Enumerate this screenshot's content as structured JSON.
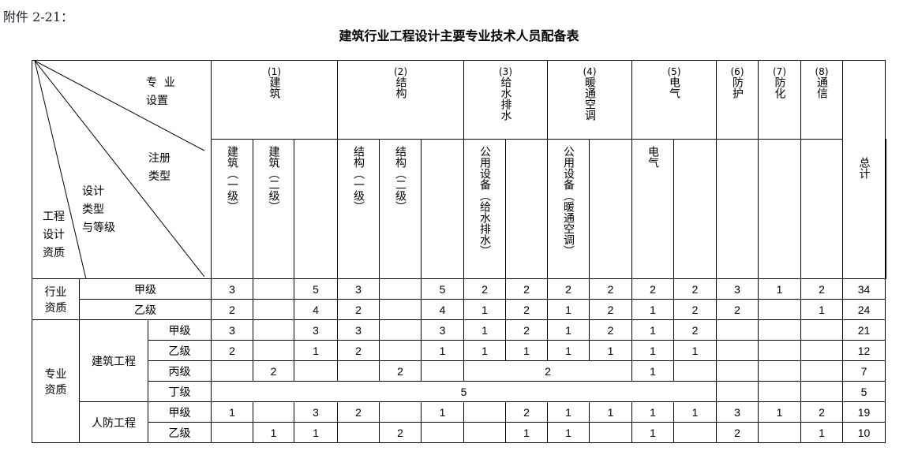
{
  "attachment_label": "附件 2-21：",
  "title": "建筑行业工程设计主要专业技术人员配备表",
  "corner": {
    "specialty_setting": "专  业\n设置",
    "registration_type": "注册\n类型",
    "design_type_grade": "设计\n类型\n与等级",
    "qualification": "工程\n设计\n资质"
  },
  "groups": [
    {
      "num": "(1)",
      "name": "建筑",
      "span": 3
    },
    {
      "num": "(2)",
      "name": "结构",
      "span": 3
    },
    {
      "num": "(3)",
      "name": "给水排水",
      "span": 2
    },
    {
      "num": "(4)",
      "name": "暖通空调",
      "span": 2
    },
    {
      "num": "(5)",
      "name": "电气",
      "span": 2
    },
    {
      "num": "(6)",
      "name": "防护",
      "span": 1
    },
    {
      "num": "(7)",
      "name": "防化",
      "span": 1
    },
    {
      "num": "(8)",
      "name": "通信",
      "span": 1
    }
  ],
  "total_label": "总计",
  "subheaders": [
    "建筑（一级）",
    "建筑（二级）",
    "",
    "结构（一级）",
    "结构（二级）",
    "",
    "公用设备（给水排水）",
    "",
    "公用设备（暖通空调）",
    "",
    "电气",
    "",
    "",
    "",
    "",
    ""
  ],
  "rows": [
    {
      "labels": [
        {
          "v": "行业\n资质",
          "rowspan": 2
        },
        {
          "v": "甲级",
          "colspan": 2
        }
      ],
      "cells": [
        "3",
        "",
        "5",
        "3",
        "",
        "5",
        "2",
        "2",
        "2",
        "2",
        "2",
        "2",
        "3",
        "1",
        "2",
        "34"
      ]
    },
    {
      "labels": [
        {
          "v": "乙级",
          "colspan": 2
        }
      ],
      "cells": [
        "2",
        "",
        "4",
        "2",
        "",
        "4",
        "1",
        "2",
        "1",
        "2",
        "1",
        "2",
        "2",
        "",
        "1",
        "24"
      ]
    },
    {
      "labels": [
        {
          "v": "专业\n资质",
          "rowspan": 6
        },
        {
          "v": "建筑工程",
          "rowspan": 4
        },
        {
          "v": "甲级"
        }
      ],
      "cells": [
        "3",
        "",
        "3",
        "3",
        "",
        "3",
        "1",
        "2",
        "1",
        "2",
        "1",
        "2",
        "",
        "",
        "",
        "21"
      ]
    },
    {
      "labels": [
        {
          "v": "乙级"
        }
      ],
      "cells": [
        "2",
        "",
        "1",
        "2",
        "",
        "1",
        "1",
        "1",
        "1",
        "1",
        "1",
        "1",
        "",
        "",
        "",
        "12"
      ]
    },
    {
      "labels": [
        {
          "v": "丙级"
        }
      ],
      "cells": [
        "",
        "2",
        "",
        "",
        "2",
        "",
        {
          "v": "2",
          "colspan": 4
        },
        "1",
        "",
        "",
        "",
        "",
        "7"
      ]
    },
    {
      "labels": [
        {
          "v": "丁级"
        }
      ],
      "cells": [
        {
          "v": "5",
          "colspan": 12
        },
        "",
        "",
        "",
        "5"
      ]
    },
    {
      "labels": [
        {
          "v": "人防工程",
          "rowspan": 2
        },
        {
          "v": "甲级"
        }
      ],
      "cells": [
        "1",
        "",
        "3",
        "2",
        "",
        "1",
        "",
        "2",
        "1",
        "1",
        "1",
        "1",
        "3",
        "1",
        "2",
        "19"
      ]
    },
    {
      "labels": [
        {
          "v": "乙级"
        }
      ],
      "cells": [
        "",
        "1",
        "1",
        "",
        "2",
        "",
        "",
        "1",
        "1",
        "",
        "1",
        "",
        "2",
        "",
        "1",
        "10"
      ]
    }
  ]
}
